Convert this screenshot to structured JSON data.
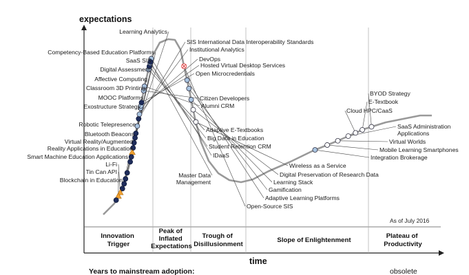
{
  "chart_data": {
    "type": "scatter",
    "subtype": "hype-cycle",
    "ylabel": "expectations",
    "xlabel": "time",
    "as_of": "As of July 2016",
    "phases": [
      {
        "lines": [
          "Innovation",
          "Trigger"
        ]
      },
      {
        "lines": [
          "Peak of",
          "Inflated",
          "Expectations"
        ]
      },
      {
        "lines": [
          "Trough of",
          "Disillusionment"
        ]
      },
      {
        "lines": [
          "Slope of Enlightenment"
        ]
      },
      {
        "lines": [
          "Plateau of",
          "Productivity"
        ]
      }
    ],
    "legend_title": "Years to mainstream adoption:",
    "legend_obsolete": "obsolete",
    "colors": {
      "curve": "#999999",
      "dark": "#1f2d5c",
      "light": "#a9c4e0",
      "white": "#ffffff",
      "triangle": "#f0a030",
      "obsolete": "#e05050"
    },
    "points": [
      {
        "name": "Learning Analytics",
        "t": 0.17,
        "marker": "light"
      },
      {
        "name": "SIS International Data Interoperability Standards",
        "t": 0.183,
        "marker": "dark"
      },
      {
        "name": "Institutional Analytics",
        "t": 0.191,
        "marker": "light"
      },
      {
        "name": "Competency-Based Education Platforms",
        "t": 0.157,
        "marker": "dark"
      },
      {
        "name": "SaaS SIS",
        "t": 0.149,
        "marker": "dark"
      },
      {
        "name": "Digital Assessment",
        "t": 0.14,
        "marker": "dark"
      },
      {
        "name": "Affective Computing",
        "t": 0.131,
        "marker": "dark"
      },
      {
        "name": "Classroom 3D Printing",
        "t": 0.123,
        "marker": "triangle"
      },
      {
        "name": "MOOC Platforms",
        "t": 0.115,
        "marker": "dark"
      },
      {
        "name": "Exostructure Strategy",
        "t": 0.106,
        "marker": "dark"
      },
      {
        "name": "DevOps",
        "t": 0.202,
        "marker": "light"
      },
      {
        "name": "Hosted Virtual Desktop Services",
        "t": 0.206,
        "marker": "light"
      },
      {
        "name": "Open Microcredentials",
        "t": 0.212,
        "marker": "dark"
      },
      {
        "name": "Citizen Developers",
        "t": 0.233,
        "marker": "light"
      },
      {
        "name": "Alumni CRM",
        "t": 0.241,
        "marker": "light"
      },
      {
        "name": "Robotic Telepresence",
        "t": 0.086,
        "marker": "dark"
      },
      {
        "name": "Bluetooth Beacons",
        "t": 0.075,
        "marker": "dark"
      },
      {
        "name": "Virtual Reality/Augmented Reality Applications in Education",
        "t": 0.066,
        "marker": "dark"
      },
      {
        "name": "Smart Machine Education Applications",
        "t": 0.057,
        "marker": "dark"
      },
      {
        "name": "Li-Fi",
        "t": 0.049,
        "marker": "triangle"
      },
      {
        "name": "Tin Can API",
        "t": 0.042,
        "marker": "triangle"
      },
      {
        "name": "Blockchain in Education",
        "t": 0.034,
        "marker": "dark"
      },
      {
        "name": "Adaptive E-Textbooks",
        "t": 0.271,
        "marker": "light"
      },
      {
        "name": "Big Data in Education",
        "t": 0.277,
        "marker": "dark"
      },
      {
        "name": "Student Retention CRM",
        "t": 0.283,
        "marker": "light"
      },
      {
        "name": "IDaaS",
        "t": 0.291,
        "marker": "light"
      },
      {
        "name": "Master Data Management",
        "t": 0.285,
        "marker": "dark"
      },
      {
        "name": "Open-Source SIS",
        "t": 0.4,
        "marker": "obsolete"
      },
      {
        "name": "Adaptive Learning Platforms",
        "t": 0.425,
        "marker": "light"
      },
      {
        "name": "Gamification",
        "t": 0.44,
        "marker": "light"
      },
      {
        "name": "Learning Stack",
        "t": 0.46,
        "marker": "light"
      },
      {
        "name": "Digital Preservation of Research Data",
        "t": 0.478,
        "marker": "white"
      },
      {
        "name": "Wireless as a Service",
        "t": 0.5,
        "marker": "white"
      },
      {
        "name": "Integration Brokerage",
        "t": 0.785,
        "marker": "light"
      },
      {
        "name": "Mobile Learning Smartphones",
        "t": 0.808,
        "marker": "white"
      },
      {
        "name": "Virtual Worlds",
        "t": 0.828,
        "marker": "white"
      },
      {
        "name": "SaaS Administration Applications",
        "t": 0.848,
        "marker": "white"
      },
      {
        "name": "Cloud HPC/CaaS",
        "t": 0.862,
        "marker": "white"
      },
      {
        "name": "E-Textbook",
        "t": 0.875,
        "marker": "white"
      },
      {
        "name": "BYOD Strategy",
        "t": 0.892,
        "marker": "white"
      }
    ]
  }
}
